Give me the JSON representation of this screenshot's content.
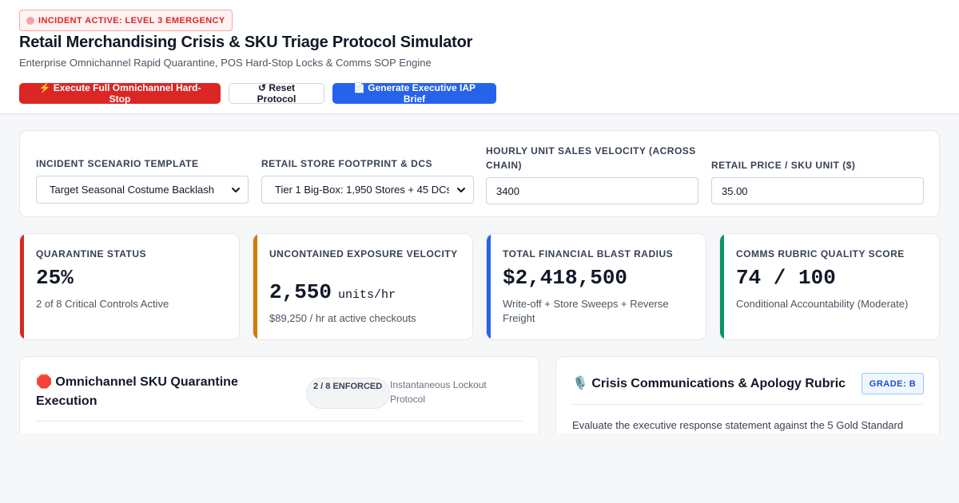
{
  "header": {
    "alert": "INCIDENT ACTIVE: LEVEL 3 EMERGENCY",
    "title": "Retail Merchandising Crisis & SKU Triage Protocol Simulator",
    "subtitle": "Enterprise Omnichannel Rapid Quarantine, POS Hard-Stop Locks & Comms SOP Engine",
    "buttons": {
      "hard_stop": "⚡ Execute Full Omnichannel Hard-Stop",
      "reset": "↺ Reset Protocol",
      "brief": "📄 Generate Executive IAP Brief"
    }
  },
  "config": {
    "scenario": {
      "label": "INCIDENT SCENARIO TEMPLATE",
      "value": "Target Seasonal Costume Backlash"
    },
    "footprint": {
      "label": "RETAIL STORE FOOTPRINT & DCS",
      "value": "Tier 1 Big-Box: 1,950 Stores + 45 DCs"
    },
    "velocity": {
      "label": "HOURLY UNIT SALES VELOCITY (ACROSS CHAIN)",
      "value": "3400"
    },
    "price": {
      "label": "RETAIL PRICE / SKU UNIT ($)",
      "value": "35.00"
    }
  },
  "metrics": {
    "quarantine": {
      "label": "QUARANTINE STATUS",
      "value": "25%",
      "sub": "2 of 8 Critical Controls Active"
    },
    "exposure": {
      "label": "UNCONTAINED EXPOSURE VELOCITY",
      "value": "2,550",
      "unit": "units/hr",
      "sub": "$89,250 / hr at active checkouts"
    },
    "blast": {
      "label": "TOTAL FINANCIAL BLAST RADIUS",
      "value": "$2,418,500",
      "sub": "Write-off + Store Sweeps + Reverse Freight"
    },
    "comms": {
      "label": "COMMS RUBRIC QUALITY SCORE",
      "value": "74 / 100",
      "sub": "Conditional Accountability (Moderate)"
    }
  },
  "quarantine_panel": {
    "title": "🛑 Omnichannel SKU Quarantine Execution",
    "pill": "2 / 8 ENFORCED",
    "note": "Instantaneous Lockout Protocol"
  },
  "rubric_panel": {
    "title": "🎙️ Crisis Communications & Apology Rubric",
    "grade": "GRADE: B",
    "description": "Evaluate the executive response statement against the 5 Gold Standard"
  },
  "colors": {
    "danger": "#dc2626",
    "primary": "#2563eb",
    "quarantine_accent": "#dc2626",
    "exposure_accent": "#d97706",
    "blast_accent": "#2563eb",
    "comms_accent": "#059669"
  }
}
